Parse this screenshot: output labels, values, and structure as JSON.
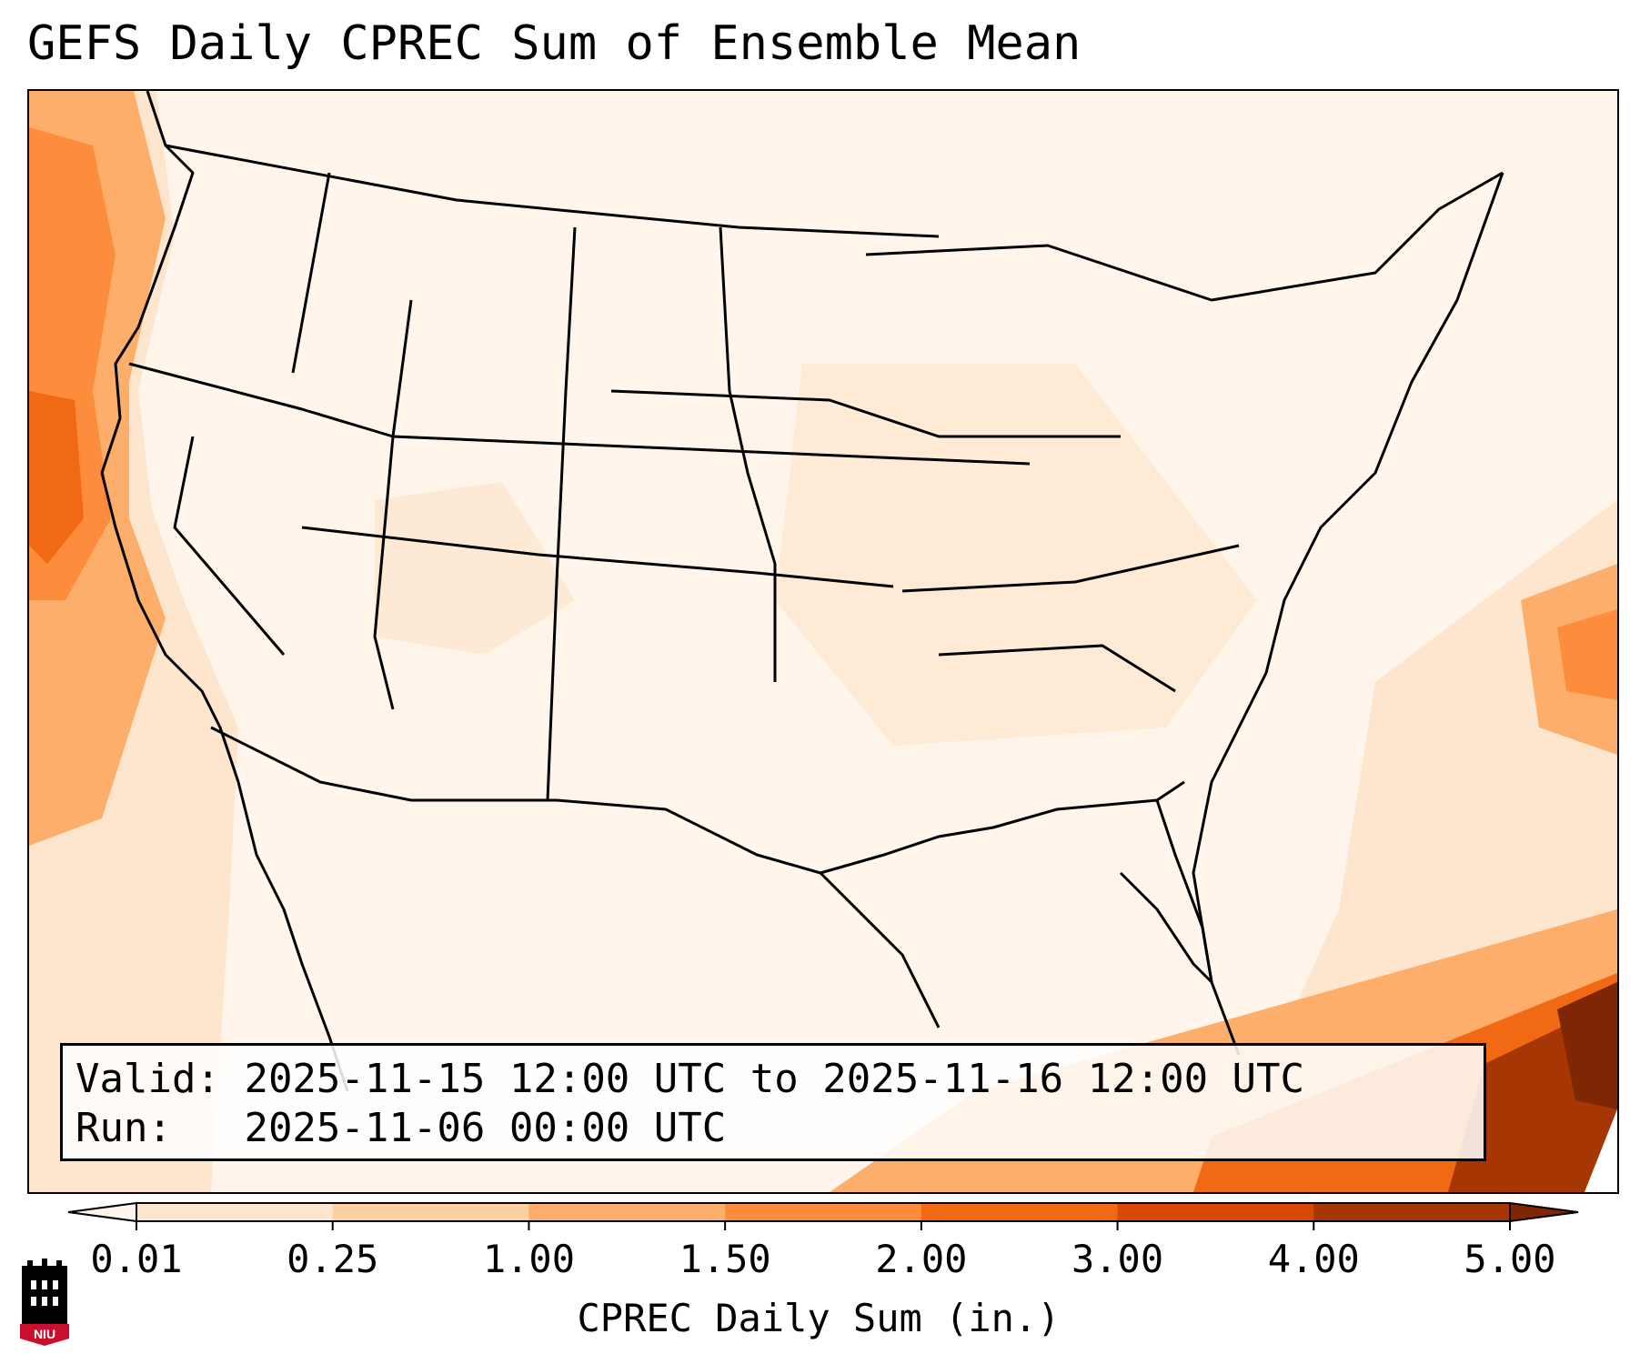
{
  "title": "GEFS Daily CPREC Sum of Ensemble Mean",
  "valid_label": "Valid:",
  "valid_text": "2025-11-15 12:00 UTC to 2025-11-16 12:00 UTC",
  "run_label": "Run:",
  "run_text": "2025-11-06 00:00 UTC",
  "colorbar": {
    "title": "CPREC Daily Sum (in.)",
    "ticks": [
      "0.01",
      "0.25",
      "1.00",
      "1.50",
      "2.00",
      "3.00",
      "4.00",
      "5.00"
    ],
    "colors": [
      "#fee6ce",
      "#fdd0a2",
      "#fdae6b",
      "#fd8d3c",
      "#f16913",
      "#d94801",
      "#a63603"
    ],
    "under_color": "#fff5eb",
    "over_color": "#7f2704"
  },
  "logo": {
    "text": "NIU",
    "icon": "niu-university-logo-icon",
    "color": "#c8102e"
  }
}
